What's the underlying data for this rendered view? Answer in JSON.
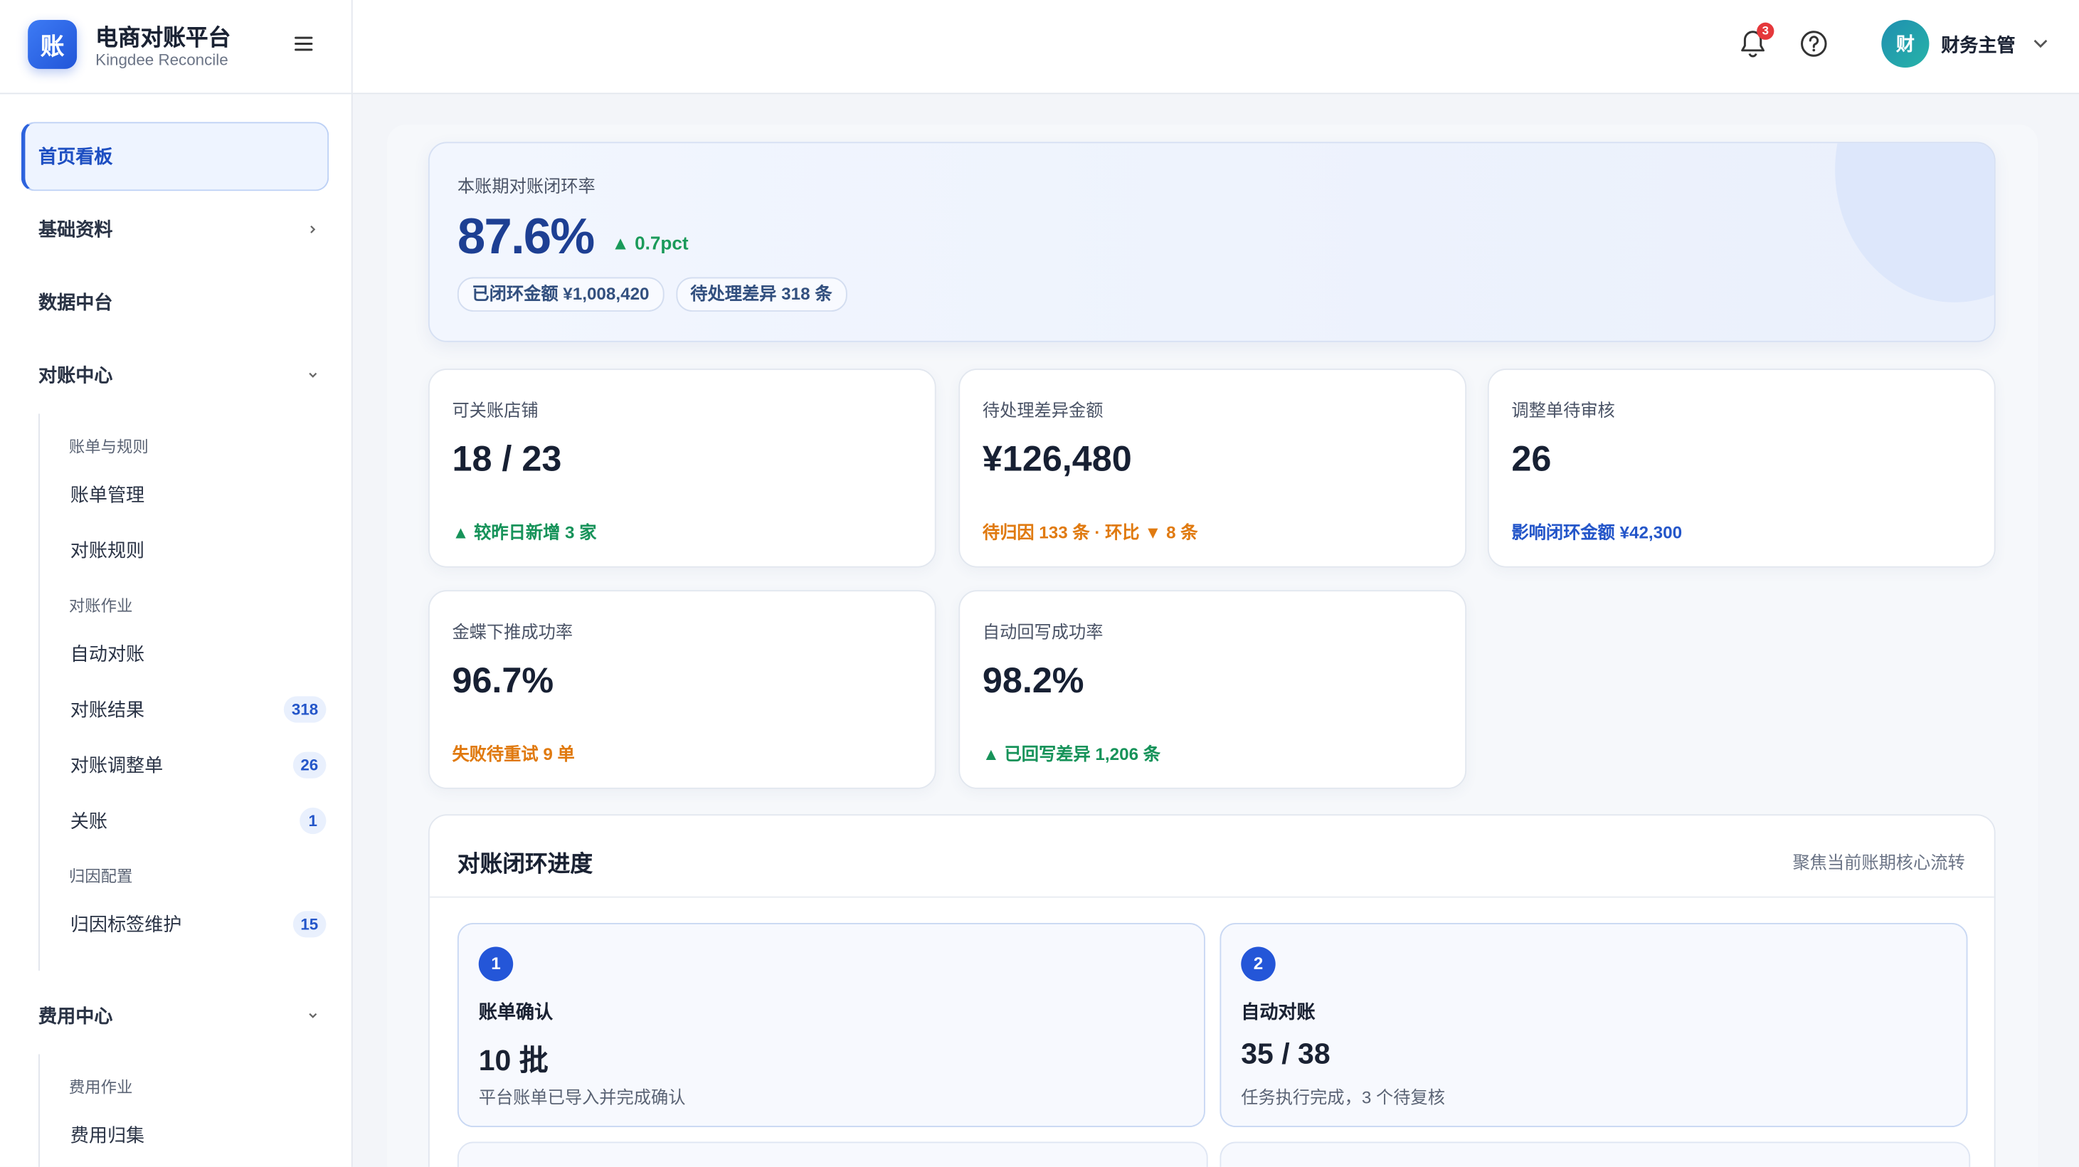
{
  "sidebar": {
    "logo": "账",
    "title": "电商对账平台",
    "subtitle": "Kingdee Reconcile",
    "menu": [
      {
        "label": "首页看板"
      },
      {
        "label": "基础资料"
      },
      {
        "label": "数据中台"
      },
      {
        "label": "对账中心",
        "groups": [
          {
            "title": "账单与规则",
            "items": [
              {
                "label": "账单管理"
              },
              {
                "label": "对账规则"
              }
            ]
          },
          {
            "title": "对账作业",
            "items": [
              {
                "label": "自动对账"
              },
              {
                "label": "对账结果",
                "badge": "318"
              },
              {
                "label": "对账调整单",
                "badge": "26"
              },
              {
                "label": "关账",
                "badge": "1"
              }
            ]
          },
          {
            "title": "归因配置",
            "items": [
              {
                "label": "归因标签维护",
                "badge": "15"
              }
            ]
          }
        ]
      },
      {
        "label": "费用中心",
        "groups": [
          {
            "title": "费用作业",
            "items": [
              {
                "label": "费用归集"
              }
            ]
          }
        ]
      }
    ]
  },
  "header": {
    "notification_count": "3",
    "avatar": "财",
    "user": "财务主管"
  },
  "hero": {
    "label": "本账期对账闭环率",
    "value": "87.6%",
    "delta": "▲ 0.7pct",
    "chips": [
      "已闭环金额 ¥1,008,420",
      "待处理差异 318 条"
    ]
  },
  "cards": [
    {
      "label": "可关账店铺",
      "value": "18 / 23",
      "note": "▲ 较昨日新增 3 家",
      "tone": "green"
    },
    {
      "label": "待处理差异金额",
      "value": "¥126,480",
      "note": "待归因 133 条 · 环比 ▼ 8 条",
      "tone": "orange"
    },
    {
      "label": "调整单待审核",
      "value": "26",
      "note": "影响闭环金额 ¥42,300",
      "tone": "blue"
    },
    {
      "label": "金蝶下推成功率",
      "value": "96.7%",
      "note": "失败待重试 9 单",
      "tone": "orange"
    },
    {
      "label": "自动回写成功率",
      "value": "98.2%",
      "note": "▲ 已回写差异 1,206 条",
      "tone": "green"
    }
  ],
  "progress": {
    "title": "对账闭环进度",
    "subtitle": "聚焦当前账期核心流转",
    "steps": [
      {
        "index": "1",
        "title": "账单确认",
        "value": "10 批",
        "desc": "平台账单已导入并完成确认"
      },
      {
        "index": "2",
        "title": "自动对账",
        "value": "35 / 38",
        "desc": "任务执行完成，3 个待复核"
      }
    ]
  }
}
